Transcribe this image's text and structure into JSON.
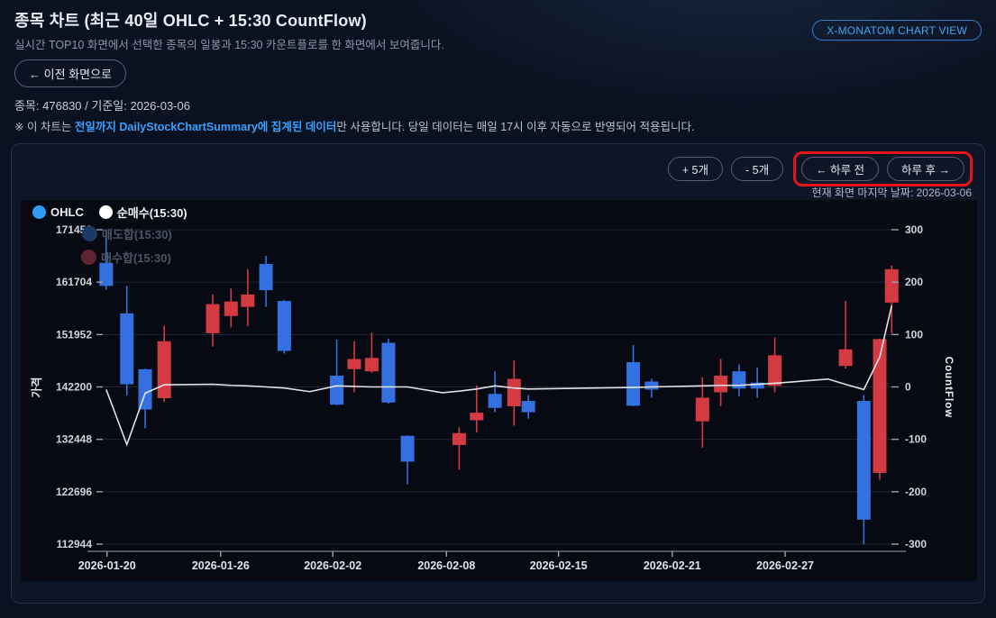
{
  "header": {
    "title": "종목 차트 (최근 40일 OHLC + 15:30 CountFlow)",
    "subtitle": "실시간 TOP10 화면에서 선택한 종목의 일봉과 15:30 카운트플로를 한 화면에서 보여줍니다.",
    "chart_view_button": "X-MONATOM CHART VIEW",
    "back_button": "← 이전 화면으로",
    "stock_info": "종목: 476830 / 기준일: 2026-03-06",
    "note_prefix": "※ 이 차트는 ",
    "note_highlight": "전일까지 DailyStockChartSummary에 집계된 데이터",
    "note_suffix": "만 사용합니다. 당일 데이터는 매일 17시 이후 자동으로 반영되어 적용됩니다."
  },
  "controls": {
    "add_five": "+ 5개",
    "minus_five": "- 5개",
    "prev_day": "← 하루 전",
    "next_day": "하루 후 →",
    "last_date_caption": "현재 화면 마지막 날짜: 2026-03-06"
  },
  "legend": {
    "items": [
      {
        "label": "OHLC",
        "color": "#2e9df3",
        "enabled": true
      },
      {
        "label": "순매수(15:30)",
        "color": "#ffffff",
        "enabled": true
      },
      {
        "label": "매도합(15:30)",
        "color": "#1c3a66",
        "enabled": false
      },
      {
        "label": "매수합(15:30)",
        "color": "#5d2531",
        "enabled": false
      }
    ]
  },
  "colors": {
    "accent_blue": "#3aa0ff",
    "annotation_red": "#e41417",
    "panel_bg": "#0d1626",
    "chart_bg": "#070a13"
  },
  "chart_data": {
    "type": "candlestick+line",
    "up_color": "#d43a42",
    "down_color": "#3470e0",
    "line_color": "#eceef2",
    "grid_color": "#1e2637",
    "axis_color": "#98a1b3",
    "y_left": {
      "label": "가격",
      "min": 112944,
      "max": 171456,
      "ticks": [
        171456,
        161704,
        151952,
        142200,
        132448,
        122696,
        112944
      ]
    },
    "y_right": {
      "label": "CountFlow",
      "min": -300,
      "max": 300,
      "ticks": [
        300,
        200,
        100,
        0,
        -100,
        -200,
        -300
      ]
    },
    "x_ticks": [
      {
        "label": "2026-01-20",
        "f": 0.011
      },
      {
        "label": "2026-01-26",
        "f": 0.154
      },
      {
        "label": "2026-02-02",
        "f": 0.295
      },
      {
        "label": "2026-02-08",
        "f": 0.438
      },
      {
        "label": "2026-02-15",
        "f": 0.579
      },
      {
        "label": "2026-02-21",
        "f": 0.722
      },
      {
        "label": "2026-02-27",
        "f": 0.864
      }
    ],
    "candles": [
      [
        0.01,
        165300,
        171456,
        160300,
        161000
      ],
      [
        0.036,
        155900,
        161000,
        140600,
        142700
      ],
      [
        0.059,
        145500,
        145600,
        134500,
        138000
      ],
      [
        0.083,
        140100,
        153600,
        139400,
        150700
      ],
      [
        0.144,
        152200,
        159400,
        149700,
        157600
      ],
      [
        0.167,
        155400,
        160500,
        153300,
        158100
      ],
      [
        0.188,
        157100,
        164100,
        153500,
        159400
      ],
      [
        0.211,
        165100,
        166600,
        157100,
        160200
      ],
      [
        0.234,
        158200,
        158400,
        148400,
        148900
      ],
      [
        0.3,
        144300,
        151000,
        138800,
        138900
      ],
      [
        0.322,
        145500,
        150700,
        141200,
        147400
      ],
      [
        0.344,
        145100,
        152300,
        144800,
        147600
      ],
      [
        0.365,
        150400,
        151200,
        139100,
        139300
      ],
      [
        0.389,
        133100,
        133200,
        124100,
        128300
      ],
      [
        0.454,
        131400,
        134700,
        126800,
        133600
      ],
      [
        0.476,
        136000,
        142500,
        133700,
        137400
      ],
      [
        0.499,
        140900,
        145100,
        137500,
        138300
      ],
      [
        0.523,
        138600,
        147100,
        135000,
        143700
      ],
      [
        0.541,
        139600,
        140700,
        136300,
        137500
      ],
      [
        0.673,
        146800,
        150000,
        138600,
        138700
      ],
      [
        0.696,
        143200,
        143700,
        140200,
        141700
      ],
      [
        0.76,
        135800,
        144000,
        130900,
        140200
      ],
      [
        0.783,
        141200,
        147400,
        138600,
        144300
      ],
      [
        0.806,
        145100,
        146400,
        140400,
        141900
      ],
      [
        0.829,
        143000,
        145800,
        140200,
        141900
      ],
      [
        0.851,
        142400,
        151400,
        141200,
        148100
      ],
      [
        0.94,
        146100,
        158200,
        145600,
        149200
      ],
      [
        0.963,
        139600,
        140700,
        112944,
        117500
      ],
      [
        0.983,
        126200,
        151200,
        124900,
        151100
      ],
      [
        0.998,
        157900,
        164800,
        152200,
        164100
      ]
    ],
    "countflow_line": [
      [
        0.01,
        -5
      ],
      [
        0.036,
        -110
      ],
      [
        0.059,
        -12
      ],
      [
        0.083,
        4
      ],
      [
        0.144,
        5
      ],
      [
        0.167,
        3
      ],
      [
        0.188,
        2
      ],
      [
        0.211,
        0
      ],
      [
        0.234,
        -2
      ],
      [
        0.266,
        -9
      ],
      [
        0.3,
        2
      ],
      [
        0.344,
        0
      ],
      [
        0.389,
        0
      ],
      [
        0.433,
        -11
      ],
      [
        0.454,
        -8
      ],
      [
        0.476,
        -4
      ],
      [
        0.499,
        2
      ],
      [
        0.523,
        -2
      ],
      [
        0.541,
        -4
      ],
      [
        0.673,
        -1
      ],
      [
        0.696,
        0
      ],
      [
        0.76,
        2
      ],
      [
        0.783,
        3
      ],
      [
        0.806,
        3
      ],
      [
        0.829,
        5
      ],
      [
        0.851,
        7
      ],
      [
        0.918,
        15
      ],
      [
        0.94,
        5
      ],
      [
        0.963,
        -5
      ],
      [
        0.983,
        57
      ],
      [
        0.998,
        155
      ]
    ]
  }
}
